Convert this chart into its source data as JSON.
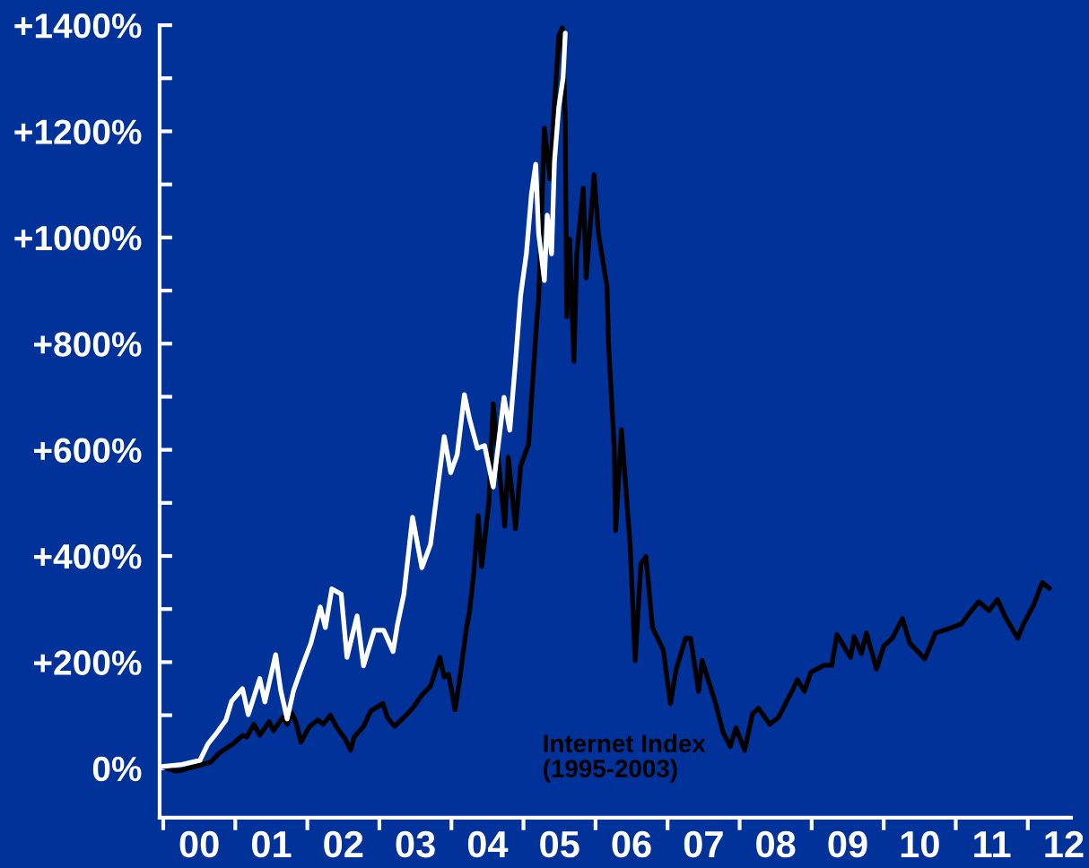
{
  "chart_data": {
    "type": "line",
    "xlim": [
      -0.05,
      12.6
    ],
    "ylim": [
      -93,
      1400
    ],
    "xticks": [
      {
        "value": 0,
        "label": null
      },
      {
        "value": 1,
        "label": null
      },
      {
        "value": 2,
        "label": null
      },
      {
        "value": 3,
        "label": null
      },
      {
        "value": 4,
        "label": null
      },
      {
        "value": 5,
        "label": null
      },
      {
        "value": 6,
        "label": null
      },
      {
        "value": 7,
        "label": null
      },
      {
        "value": 8,
        "label": null
      },
      {
        "value": 9,
        "label": null
      },
      {
        "value": 10,
        "label": null
      },
      {
        "value": 11,
        "label": null
      },
      {
        "value": 12,
        "label": null
      },
      {
        "value": 0.5,
        "label": "00"
      },
      {
        "value": 1.5,
        "label": "01"
      },
      {
        "value": 2.5,
        "label": "02"
      },
      {
        "value": 3.5,
        "label": "03"
      },
      {
        "value": 4.5,
        "label": "04"
      },
      {
        "value": 5.5,
        "label": "05"
      },
      {
        "value": 6.5,
        "label": "06"
      },
      {
        "value": 7.5,
        "label": "07"
      },
      {
        "value": 8.5,
        "label": "08"
      },
      {
        "value": 9.5,
        "label": "09"
      },
      {
        "value": 10.5,
        "label": "10"
      },
      {
        "value": 11.5,
        "label": "11"
      },
      {
        "value": 12.5,
        "label": "12"
      }
    ],
    "yticks": [
      {
        "value": 0,
        "label": "0%"
      },
      {
        "value": 100,
        "label": null
      },
      {
        "value": 200,
        "label": "+200%"
      },
      {
        "value": 300,
        "label": null
      },
      {
        "value": 400,
        "label": "+400%"
      },
      {
        "value": 500,
        "label": null
      },
      {
        "value": 600,
        "label": "+600%"
      },
      {
        "value": 700,
        "label": null
      },
      {
        "value": 800,
        "label": "+800%"
      },
      {
        "value": 900,
        "label": null
      },
      {
        "value": 1000,
        "label": "+1000%"
      },
      {
        "value": 1100,
        "label": null
      },
      {
        "value": 1200,
        "label": "+1200%"
      },
      {
        "value": 1300,
        "label": null
      },
      {
        "value": 1400,
        "label": "+1400%"
      }
    ],
    "series": [
      {
        "name": "Internet Index\n(1995-2003)",
        "color": "#000000",
        "x": [
          -0.05,
          0.16,
          0.22,
          0.35,
          0.54,
          0.66,
          0.78,
          0.97,
          1.1,
          1.16,
          1.26,
          1.34,
          1.47,
          1.53,
          1.66,
          1.72,
          1.78,
          1.84,
          1.91,
          2.03,
          2.15,
          2.22,
          2.32,
          2.4,
          2.53,
          2.6,
          2.65,
          2.78,
          2.88,
          3.05,
          3.11,
          3.21,
          3.34,
          3.46,
          3.59,
          3.71,
          3.84,
          3.9,
          3.96,
          4.05,
          4.11,
          4.21,
          4.25,
          4.31,
          4.37,
          4.42,
          4.52,
          4.58,
          4.66,
          4.74,
          4.79,
          4.89,
          4.96,
          5.07,
          5.17,
          5.21,
          5.24,
          5.29,
          5.37,
          5.43,
          5.49,
          5.54,
          5.58,
          5.6,
          5.64,
          5.7,
          5.74,
          5.83,
          5.87,
          5.98,
          6.04,
          6.16,
          6.18,
          6.26,
          6.28,
          6.36,
          6.48,
          6.55,
          6.63,
          6.7,
          6.79,
          6.94,
          7.04,
          7.12,
          7.25,
          7.32,
          7.43,
          7.48,
          7.66,
          7.77,
          7.87,
          7.95,
          8.07,
          8.18,
          8.26,
          8.42,
          8.54,
          8.75,
          8.8,
          8.9,
          8.99,
          9.17,
          9.28,
          9.35,
          9.54,
          9.59,
          9.69,
          9.76,
          9.9,
          10.0,
          10.12,
          10.26,
          10.36,
          10.57,
          10.72,
          10.88,
          11.08,
          11.2,
          11.32,
          11.46,
          11.58,
          11.68,
          11.86,
          11.94,
          12.08,
          12.2,
          12.3
        ],
        "values": [
          5,
          -5,
          -5,
          0,
          7,
          12,
          29,
          46,
          62,
          59,
          83,
          62,
          88,
          71,
          96,
          83,
          105,
          88,
          49,
          79,
          91,
          83,
          100,
          79,
          54,
          34,
          59,
          79,
          108,
          122,
          96,
          79,
          96,
          113,
          138,
          155,
          209,
          172,
          177,
          110,
          164,
          265,
          294,
          367,
          476,
          380,
          502,
          687,
          569,
          456,
          586,
          451,
          569,
          610,
          814,
          885,
          997,
          1206,
          1110,
          1250,
          1380,
          1395,
          1223,
          851,
          997,
          767,
          969,
          1093,
          924,
          1118,
          1008,
          907,
          801,
          603,
          448,
          638,
          421,
          203,
          385,
          399,
          265,
          223,
          122,
          187,
          245,
          245,
          145,
          203,
          125,
          68,
          41,
          76,
          34,
          103,
          113,
          83,
          96,
          152,
          167,
          145,
          181,
          194,
          194,
          252,
          209,
          248,
          216,
          255,
          187,
          230,
          245,
          282,
          236,
          206,
          255,
          262,
          272,
          294,
          314,
          297,
          318,
          287,
          245,
          272,
          307,
          350,
          339
        ]
      },
      {
        "color": "#ffffff",
        "x": [
          -0.05,
          0.26,
          0.51,
          0.62,
          0.75,
          0.87,
          0.95,
          1.1,
          1.18,
          1.34,
          1.41,
          1.56,
          1.63,
          1.72,
          1.81,
          1.93,
          2.05,
          2.18,
          2.25,
          2.34,
          2.47,
          2.55,
          2.69,
          2.78,
          2.93,
          3.06,
          3.19,
          3.25,
          3.34,
          3.46,
          3.59,
          3.71,
          3.8,
          3.9,
          3.99,
          4.08,
          4.18,
          4.25,
          4.36,
          4.46,
          4.58,
          4.73,
          4.81,
          4.89,
          4.96,
          5.04,
          5.11,
          5.17,
          5.21,
          5.29,
          5.33,
          5.39,
          5.43,
          5.49,
          5.55,
          5.58
        ],
        "values": [
          3,
          7,
          15,
          46,
          68,
          91,
          127,
          150,
          101,
          169,
          125,
          214,
          147,
          93,
          147,
          193,
          236,
          304,
          265,
          338,
          328,
          209,
          287,
          193,
          260,
          260,
          220,
          270,
          328,
          473,
          378,
          422,
          519,
          625,
          557,
          591,
          704,
          659,
          603,
          608,
          530,
          699,
          637,
          767,
          890,
          969,
          1081,
          1138,
          1008,
          919,
          1042,
          969,
          1143,
          1245,
          1301,
          1385
        ]
      }
    ]
  }
}
